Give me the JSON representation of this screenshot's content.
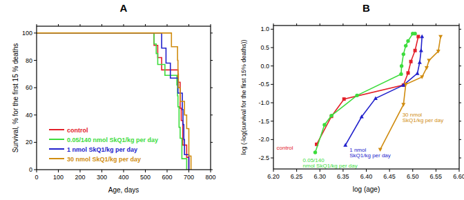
{
  "chart_data": [
    {
      "type": "line",
      "title": "A",
      "x_label": "Age, days",
      "y_label": "Survival, % for the first 15 % deaths",
      "xlim": [
        0,
        800
      ],
      "xticks": [
        0,
        100,
        200,
        300,
        400,
        500,
        600,
        700,
        800
      ],
      "ylim": [
        0,
        105
      ],
      "yticks": [
        0,
        20,
        40,
        60,
        80,
        100
      ],
      "grid": false,
      "legend": "lower left",
      "line_style": "step",
      "series": [
        {
          "name": "control",
          "color": "#e3202a",
          "x": [
            0,
            540,
            557,
            575,
            650,
            660,
            665,
            672,
            690,
            700
          ],
          "values": [
            100,
            91,
            82,
            73,
            64,
            45,
            36,
            18,
            9,
            0
          ]
        },
        {
          "name": "0.05/140 nmol SkQ1/kg per day",
          "color": "#3ddc3d",
          "x": [
            0,
            540,
            550,
            557,
            590,
            645,
            648,
            650,
            655,
            660,
            668,
            690
          ],
          "values": [
            100,
            92,
            85,
            77,
            69,
            62,
            54,
            46,
            31,
            23,
            8,
            0
          ]
        },
        {
          "name": "1 nmol SkQ1/kg per day",
          "color": "#2222cc",
          "x": [
            0,
            575,
            595,
            615,
            650,
            670,
            673,
            677,
            680,
            700
          ],
          "values": [
            100,
            89,
            78,
            67,
            56,
            44,
            33,
            22,
            11,
            0
          ]
        },
        {
          "name": "30 nmol SkQ1/kg per day",
          "color": "#d08c10",
          "x": [
            0,
            620,
            648,
            650,
            652,
            660,
            680,
            690,
            700,
            710
          ],
          "values": [
            100,
            90,
            80,
            70,
            60,
            50,
            40,
            30,
            10,
            0
          ]
        }
      ]
    },
    {
      "type": "line",
      "title": "B",
      "x_label": "log (age)",
      "y_label": "log (-log(survival for the first 15% deaths))",
      "xlim": [
        6.2,
        6.6
      ],
      "xticks": [
        {
          "value": 6.2,
          "label": "6.20"
        },
        6.25,
        {
          "value": 6.3,
          "label": "6.30"
        },
        6.35,
        {
          "value": 6.4,
          "label": "6.40"
        },
        6.45,
        {
          "value": 6.5,
          "label": "6.50"
        },
        6.55,
        {
          "value": 6.6,
          "label": "6.60"
        }
      ],
      "ylim": [
        -2.8,
        1.1
      ],
      "yticks": [
        -2.5,
        {
          "value": -2,
          "label": "-2.0"
        },
        -1.5,
        {
          "value": -1,
          "label": "-1.0"
        },
        -0.5,
        {
          "value": 0,
          "label": "0.0"
        },
        0.5,
        {
          "value": 1,
          "label": "1.0"
        }
      ],
      "grid": false,
      "series": [
        {
          "name": "control",
          "label_lines": [
            "control"
          ],
          "color": "#e3202a",
          "marker": "square",
          "x": [
            6.293,
            6.325,
            6.352,
            6.48,
            6.49,
            6.496,
            6.505,
            6.512
          ],
          "values": [
            -2.13,
            -1.37,
            -0.9,
            -0.52,
            -0.19,
            0.12,
            0.42,
            0.8
          ]
        },
        {
          "name": "0.05/140 nmol SkQ1/kg per day",
          "label_lines": [
            "0.05/140",
            "nmol SkQ1/kg per day"
          ],
          "color": "#3ddc3d",
          "marker": "circle",
          "x": [
            6.29,
            6.31,
            6.325,
            6.38,
            6.475,
            6.476,
            6.48,
            6.485,
            6.49,
            6.5,
            6.505
          ],
          "values": [
            -2.35,
            -1.6,
            -1.35,
            -0.8,
            -0.22,
            0.0,
            0.32,
            0.55,
            0.68,
            0.88,
            0.88
          ]
        },
        {
          "name": "1 nmol SkQ1/kg per day",
          "label_lines": [
            "1 nmol",
            "SkQ1/kg per day"
          ],
          "color": "#2222cc",
          "marker": "triangle-up",
          "x": [
            6.355,
            6.39,
            6.42,
            6.48,
            6.51,
            6.515,
            6.518,
            6.52
          ],
          "values": [
            -2.15,
            -1.38,
            -0.88,
            -0.52,
            -0.2,
            0.1,
            0.42,
            0.8
          ]
        },
        {
          "name": "30 nmol SkQ1/kg per day",
          "label_lines": [
            "30 nmol",
            "SkQ1/kg per day"
          ],
          "color": "#d08c10",
          "marker": "triangle-down",
          "x": [
            6.43,
            6.48,
            6.485,
            6.52,
            6.53,
            6.535,
            6.555,
            6.56
          ],
          "values": [
            -2.27,
            -1.05,
            -0.5,
            -0.3,
            -0.05,
            0.15,
            0.4,
            0.8
          ]
        }
      ]
    }
  ]
}
